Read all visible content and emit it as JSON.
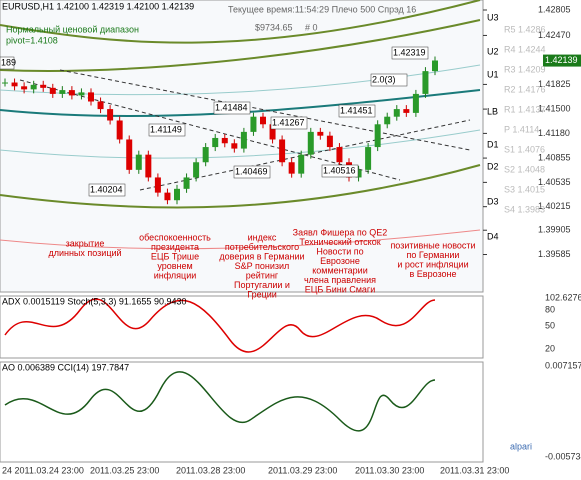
{
  "header": {
    "symbol": "EURUSD,H1  1.42100 1.42319 1.42100 1.42139",
    "status": "Текущее время:11:54:29 Плечо 500 Спрэд 16",
    "balance": "$9734.65",
    "orders": "# 0",
    "range_title": "Нормальный ценовой диапазон",
    "pivot": "pivot=1.4108"
  },
  "price_axis": {
    "ylim": [
      1.4297,
      1.3905
    ],
    "ticks": [
      "1.42805",
      "1.42470",
      "1.41825",
      "1.41500",
      "1.41180",
      "1.40855",
      "1.40535",
      "1.40215",
      "1.39905",
      "1.39585"
    ],
    "current": "1.42139"
  },
  "closes": [
    1.4185,
    1.418,
    1.4176,
    1.4182,
    1.4178,
    1.417,
    1.4175,
    1.4168,
    1.4172,
    1.416,
    1.415,
    1.4135,
    1.411,
    1.407,
    1.409,
    1.406,
    1.404,
    1.403,
    1.4045,
    1.406,
    1.408,
    1.41,
    1.4112,
    1.4105,
    1.4098,
    1.412,
    1.414,
    1.413,
    1.411,
    1.408,
    1.4065,
    1.409,
    1.412,
    1.4115,
    1.41,
    1.408,
    1.406,
    1.407,
    1.41,
    1.413,
    1.414,
    1.415,
    1.4145,
    1.417,
    1.42,
    1.4214
  ],
  "levels": [
    "U3",
    "U2",
    "U1",
    "LB",
    "D1",
    "D2",
    "D3",
    "D4"
  ],
  "pivots": [
    "R5 1.4286",
    "R4 1.4244",
    "R3 1.4209",
    "R2 1.4176",
    "R1 1.4137",
    "P 1.4114",
    "S1 1.4076",
    "S2 1.4048",
    "S3 1.4015",
    "S4 1.3983"
  ],
  "price_labels": [
    "189",
    "1.41484",
    "1.41149",
    "1.40204",
    "1.40469",
    "1.41267",
    "1.41451",
    "1.40516",
    "1.42319",
    "2.0(3)"
  ],
  "annotations": [
    [
      "закрытие",
      "длинных позиций"
    ],
    [
      "обеспокоенность",
      "президента",
      "ЕЦБ Трише",
      "уровнем",
      "инфляции"
    ],
    [
      "индекс",
      "потребительского",
      "доверия в Германии",
      "S&P понизил",
      "рейтинг",
      "Португалии и",
      "Греции"
    ],
    [
      "Заявл Фишера по QE2",
      "Технический отскок",
      "Новости по",
      "Еврозоне",
      "комментарии",
      "члена правления",
      "ЕЦБ Бини Смаги"
    ],
    [
      "позитивные новости",
      "по Германии",
      "и рост инфляции",
      "в Еврозоне"
    ]
  ],
  "stoch": {
    "label": "ADX 0.0015119 Stoch(5,3,3) 91.1655 90.9430",
    "ticks": [
      "102.6276",
      "80",
      "50",
      "20"
    ]
  },
  "ao": {
    "label": "AO 0.006389 CCI(14) 197.7847",
    "ticks": [
      "0.007157",
      "-0.005734"
    ]
  },
  "dates": [
    "24 2011.03.24 23:00",
    "2011.03.25 23:00",
    "2011.03.28 23:00",
    "2011.03.29 23:00",
    "2011.03.30 23:00",
    "2011.03.31 23:00"
  ],
  "brand": "alpari"
}
